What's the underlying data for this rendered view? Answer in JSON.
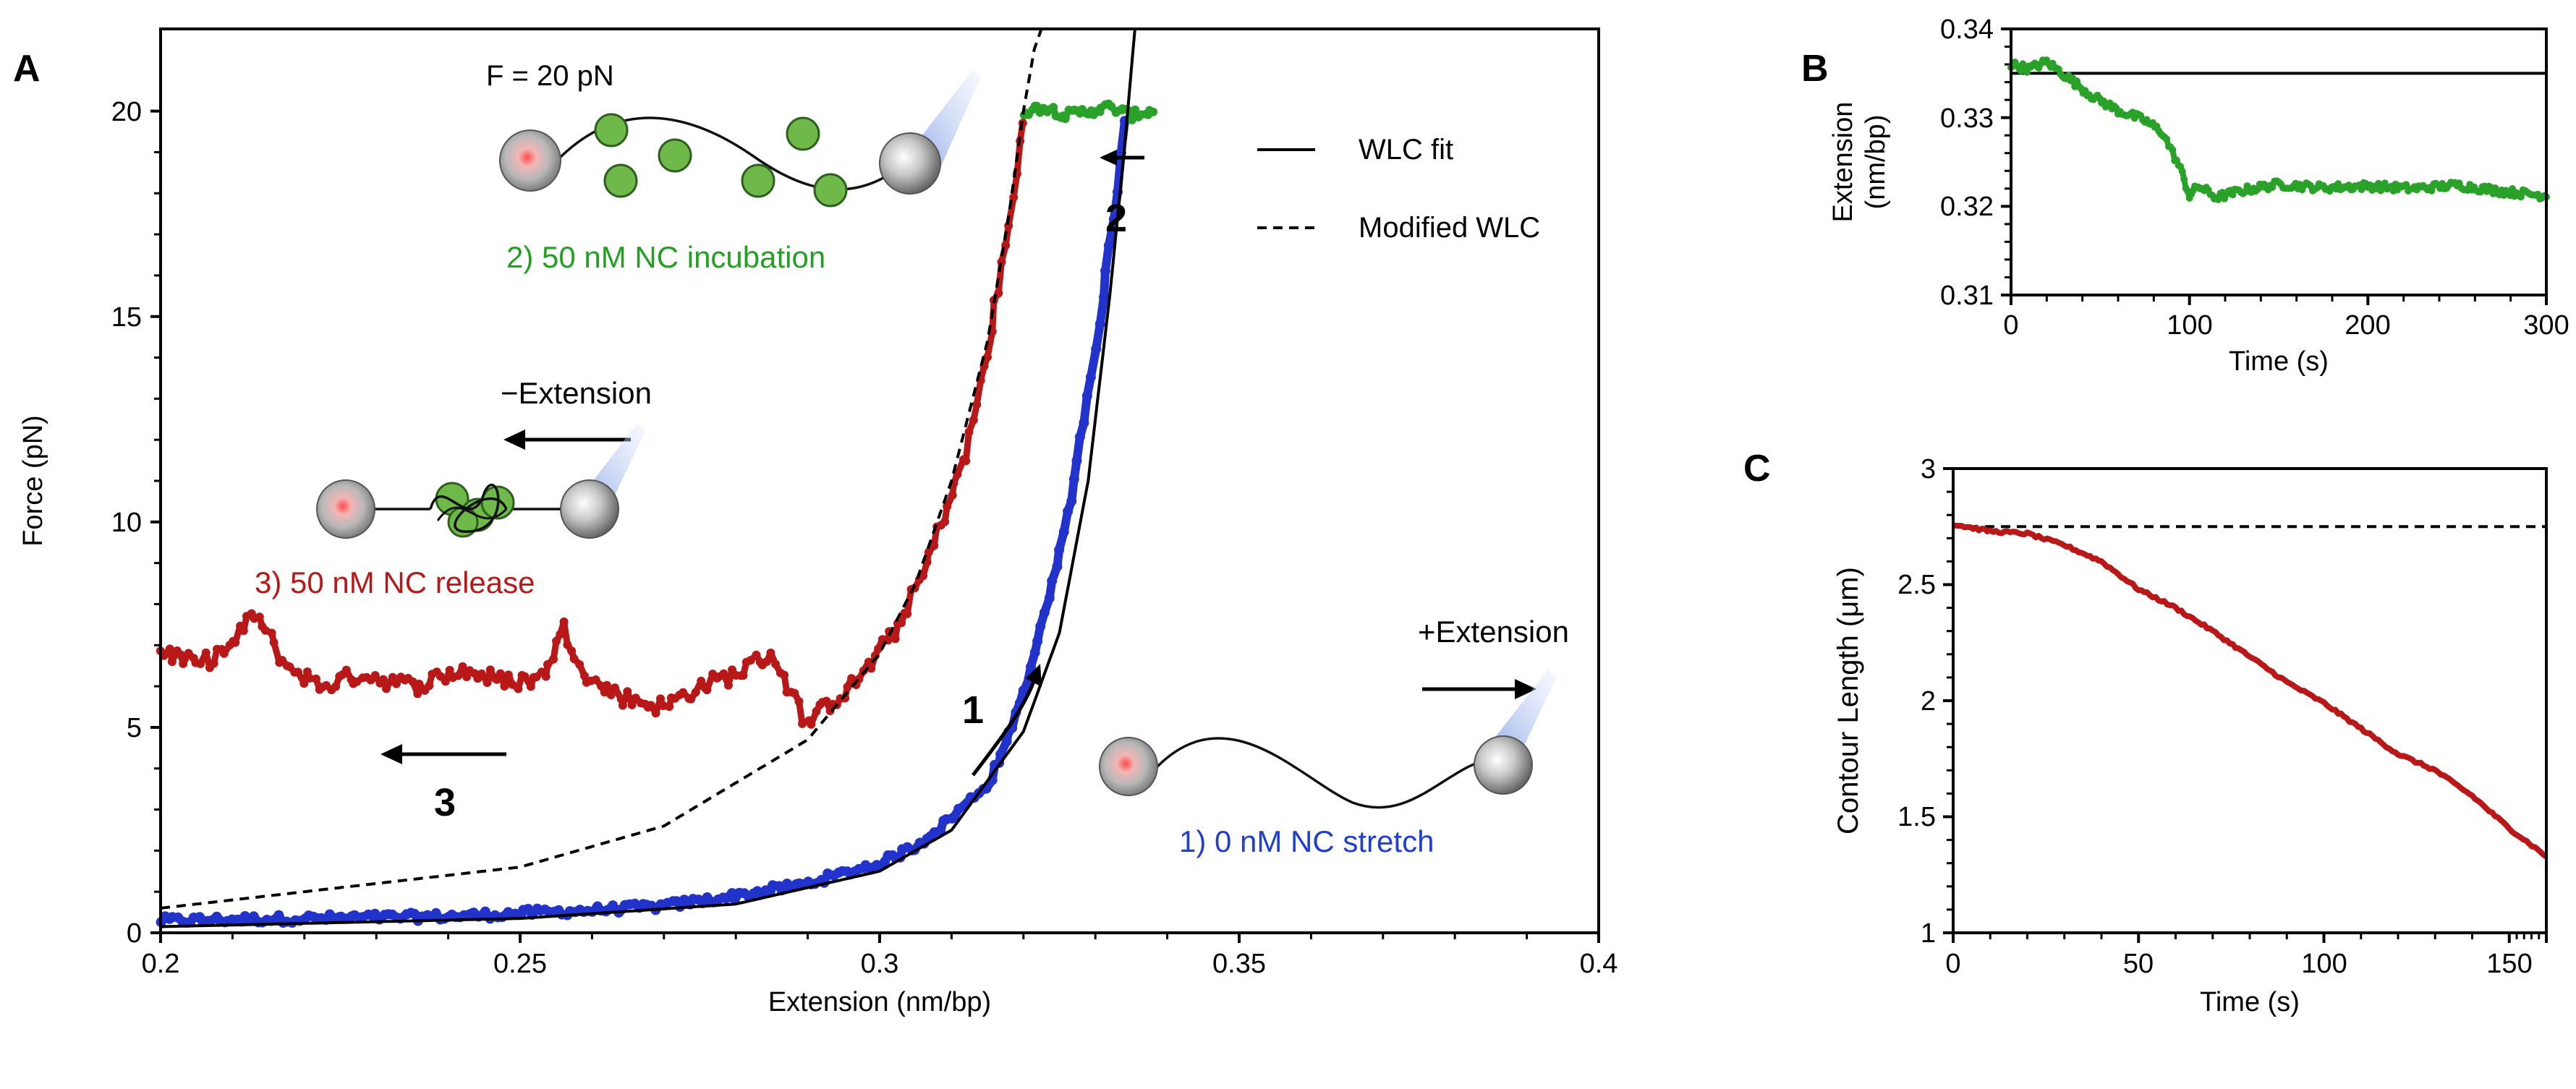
{
  "colors": {
    "axis": "#000000",
    "blue": "#2233cc",
    "red": "#b81818",
    "green": "#2aa22a",
    "green_light": "#6fb84a",
    "green_label": "#22a022",
    "blue_label": "#1f3fd0",
    "red_label": "#b81818"
  },
  "chart_data": [
    {
      "panel": "A",
      "type": "scatter",
      "xlabel": "Extension (nm/bp)",
      "ylabel": "Force (pN)",
      "xlim": [
        0.2,
        0.4
      ],
      "ylim": [
        0,
        22
      ],
      "xticks": [
        "0.2",
        "0.25",
        "0.3",
        "0.35",
        "0.4"
      ],
      "yticks": [
        "0",
        "5",
        "10",
        "15",
        "20"
      ],
      "series": [
        {
          "name": "1) 0 nM NC stretch",
          "color": "blue",
          "x": [
            0.2,
            0.22,
            0.24,
            0.26,
            0.27,
            0.28,
            0.29,
            0.3,
            0.305,
            0.31,
            0.315,
            0.318,
            0.321,
            0.324,
            0.327,
            0.329,
            0.331,
            0.333,
            0.334
          ],
          "y": [
            0.3,
            0.35,
            0.4,
            0.55,
            0.65,
            0.9,
            1.2,
            1.7,
            2.1,
            2.8,
            3.6,
            4.8,
            6.4,
            8.5,
            11.0,
            13.0,
            15.5,
            18.0,
            19.8
          ]
        },
        {
          "name": "2) 50 nM NC incubation",
          "color": "green",
          "x": [
            0.32,
            0.323,
            0.326,
            0.329,
            0.332,
            0.335,
            0.338
          ],
          "y": [
            20.0,
            20.1,
            19.9,
            20.0,
            20.1,
            19.9,
            20.0
          ]
        },
        {
          "name": "3) 50 nM NC release",
          "color": "red",
          "x": [
            0.2,
            0.205,
            0.21,
            0.213,
            0.217,
            0.222,
            0.228,
            0.235,
            0.242,
            0.248,
            0.253,
            0.256,
            0.26,
            0.265,
            0.27,
            0.275,
            0.28,
            0.285,
            0.29,
            0.293,
            0.296,
            0.3,
            0.303,
            0.306,
            0.309,
            0.312,
            0.315,
            0.318,
            0.32
          ],
          "y": [
            6.9,
            6.5,
            7.0,
            7.8,
            6.6,
            6.0,
            6.3,
            6.0,
            6.4,
            6.1,
            6.2,
            7.4,
            6.1,
            5.7,
            5.5,
            6.0,
            6.3,
            6.8,
            5.1,
            5.6,
            6.0,
            6.8,
            7.6,
            8.7,
            10.2,
            11.6,
            14.2,
            17.2,
            19.8
          ]
        },
        {
          "name": "WLC fit",
          "color": "black",
          "style": "solid",
          "x": [
            0.2,
            0.25,
            0.28,
            0.3,
            0.31,
            0.32,
            0.325,
            0.329,
            0.332,
            0.334,
            0.3355,
            0.3365
          ],
          "y": [
            0.15,
            0.35,
            0.7,
            1.5,
            2.5,
            4.9,
            7.3,
            11.0,
            15.5,
            19.0,
            22.0,
            24.0
          ]
        },
        {
          "name": "Modified WLC",
          "color": "black",
          "style": "dashed",
          "x": [
            0.2,
            0.25,
            0.27,
            0.29,
            0.3,
            0.305,
            0.31,
            0.315,
            0.318,
            0.32,
            0.3215,
            0.3225
          ],
          "y": [
            0.6,
            1.6,
            2.6,
            4.7,
            6.8,
            8.5,
            11.0,
            14.4,
            17.5,
            20.0,
            21.5,
            22.0
          ]
        }
      ],
      "legend": [
        {
          "label": "WLC fit",
          "style": "solid"
        },
        {
          "label": "Modified WLC",
          "style": "dashed"
        }
      ],
      "annotations": {
        "force_label": "F = 20 pN",
        "incubation_label": "2) 50 nM NC incubation",
        "release_label": "3) 50 nM NC release",
        "stretch_label": "1) 0 nM NC stretch",
        "minus_extension": "−Extension",
        "plus_extension": "+Extension",
        "step1": "1",
        "step2": "2",
        "step3": "3"
      }
    },
    {
      "panel": "B",
      "type": "line",
      "xlabel": "Time (s)",
      "ylabel_line1": "Extension",
      "ylabel_line2": "(nm/bp)",
      "xlim": [
        0,
        300
      ],
      "ylim": [
        0.31,
        0.34
      ],
      "xticks": [
        "0",
        "100",
        "200",
        "300"
      ],
      "yticks": [
        "0.31",
        "0.32",
        "0.33",
        "0.34"
      ],
      "reference_line": 0.335,
      "series": [
        {
          "name": "extension",
          "color": "green",
          "x": [
            0,
            10,
            20,
            30,
            45,
            60,
            75,
            85,
            95,
            100,
            105,
            115,
            130,
            150,
            175,
            200,
            225,
            250,
            275,
            300
          ],
          "y": [
            0.336,
            0.3355,
            0.3363,
            0.3348,
            0.3325,
            0.3308,
            0.3297,
            0.3283,
            0.3242,
            0.3212,
            0.3223,
            0.321,
            0.3218,
            0.3225,
            0.3221,
            0.3223,
            0.322,
            0.3224,
            0.3217,
            0.3212
          ]
        }
      ]
    },
    {
      "panel": "C",
      "type": "line",
      "xlabel": "Time (s)",
      "ylabel": "Contour Length (μm)",
      "xlim": [
        0,
        160
      ],
      "ylim": [
        1,
        3
      ],
      "xticks": [
        "0",
        "50",
        "100",
        "150"
      ],
      "yticks": [
        "1",
        "1.5",
        "2",
        "2.5",
        "3"
      ],
      "reference_line": 2.75,
      "series": [
        {
          "name": "contour length",
          "color": "red",
          "x": [
            0,
            10,
            20,
            30,
            40,
            50,
            60,
            70,
            80,
            90,
            100,
            110,
            120,
            130,
            140,
            150,
            160
          ],
          "y": [
            2.76,
            2.73,
            2.72,
            2.67,
            2.6,
            2.48,
            2.4,
            2.3,
            2.19,
            2.08,
            1.99,
            1.88,
            1.77,
            1.7,
            1.59,
            1.45,
            1.33
          ]
        }
      ]
    }
  ],
  "panel_labels": {
    "a": "A",
    "b": "B",
    "c": "C"
  }
}
